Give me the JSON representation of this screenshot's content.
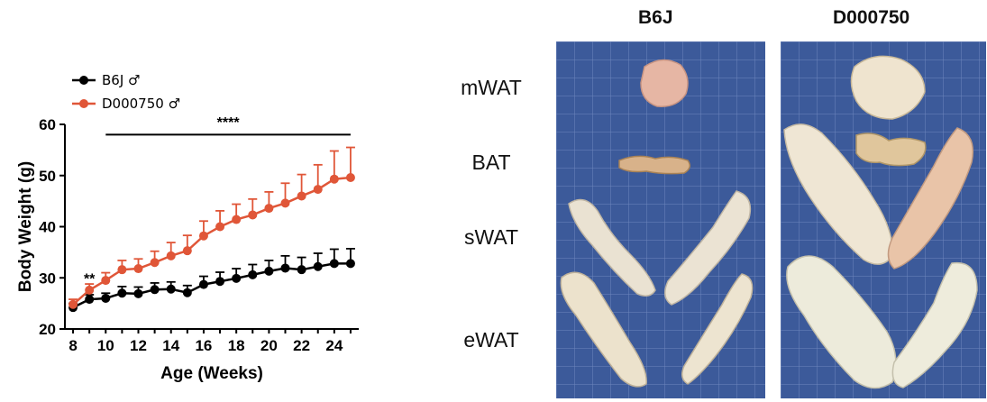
{
  "chart_data": {
    "type": "line",
    "xlabel": "Age (Weeks)",
    "ylabel": "Body Weight (g)",
    "xlim": [
      7.5,
      25.5
    ],
    "ylim": [
      20,
      60
    ],
    "xticks": [
      8,
      10,
      12,
      14,
      16,
      18,
      20,
      22,
      24
    ],
    "yticks": [
      20,
      30,
      40,
      50,
      60
    ],
    "x": [
      8,
      9,
      10,
      11,
      12,
      13,
      14,
      15,
      16,
      17,
      18,
      19,
      20,
      21,
      22,
      23,
      24,
      25
    ],
    "series": [
      {
        "name": "B6J ♂",
        "color": "#000000",
        "values": [
          24.2,
          25.8,
          26.0,
          27.0,
          26.9,
          27.7,
          27.8,
          27.1,
          28.7,
          29.3,
          29.9,
          30.6,
          31.3,
          31.9,
          31.6,
          32.2,
          32.8,
          32.8
        ],
        "errors": [
          0.8,
          0.9,
          1.0,
          1.3,
          1.3,
          1.3,
          1.4,
          1.4,
          1.6,
          1.8,
          1.9,
          2.0,
          2.1,
          2.4,
          2.4,
          2.6,
          2.8,
          2.9
        ]
      },
      {
        "name": "D000750 ♂",
        "color": "#e05638",
        "values": [
          24.8,
          27.6,
          29.5,
          31.6,
          31.8,
          33.0,
          34.3,
          35.3,
          38.2,
          40.0,
          41.4,
          42.3,
          43.6,
          44.6,
          46.0,
          47.3,
          49.3,
          49.6
        ],
        "errors": [
          1.0,
          1.2,
          1.5,
          1.8,
          1.9,
          2.2,
          2.6,
          3.0,
          2.9,
          3.1,
          3.0,
          3.1,
          3.2,
          3.9,
          4.2,
          4.8,
          5.5,
          5.9
        ]
      }
    ],
    "annotations": [
      {
        "text": "**",
        "x": 9,
        "y": 28.9
      },
      {
        "text": "****",
        "x": 17.5,
        "y": 59.5,
        "bar_from": 10,
        "bar_to": 25,
        "bar_y": 58.0
      }
    ],
    "legend_position": "top-left"
  },
  "photo": {
    "columns": [
      "B6J",
      "D000750"
    ],
    "tissues": [
      "mWAT",
      "BAT",
      "sWAT",
      "eWAT"
    ],
    "background_color": "#3c5a9a"
  }
}
